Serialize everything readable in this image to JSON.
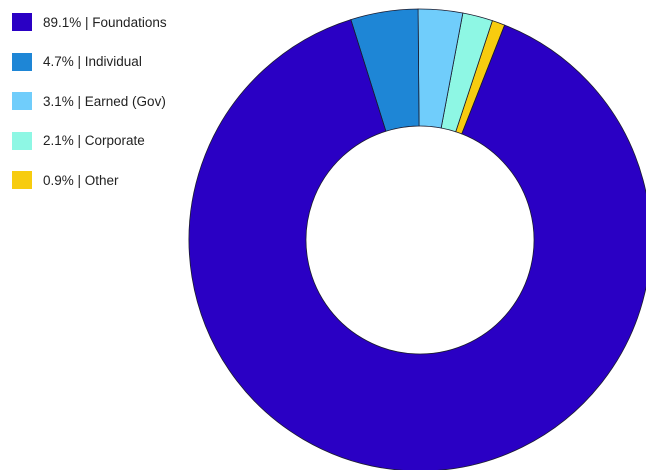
{
  "chart_data": {
    "type": "pie",
    "donut": true,
    "title": "",
    "legend_position": "top-left",
    "categories": [
      "Foundations",
      "Individual",
      "Earned (Gov)",
      "Corporate",
      "Other"
    ],
    "values": [
      89.1,
      4.7,
      3.1,
      2.1,
      0.9
    ],
    "value_unit": "%",
    "colors": [
      "#2a00c4",
      "#1e86d6",
      "#70cdfb",
      "#8ef7e4",
      "#f7cc0f"
    ],
    "legend": [
      {
        "label": "89.1% | Foundations",
        "color": "#2a00c4"
      },
      {
        "label": "4.7% | Individual",
        "color": "#1e86d6"
      },
      {
        "label": "3.1% | Earned (Gov)",
        "color": "#70cdfb"
      },
      {
        "label": "2.1% | Corporate",
        "color": "#8ef7e4"
      },
      {
        "label": "0.9% | Other",
        "color": "#f7cc0f"
      }
    ]
  }
}
